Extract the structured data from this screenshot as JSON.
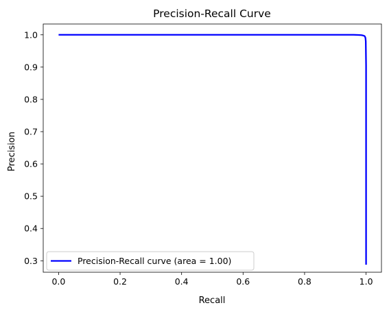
{
  "chart_data": {
    "type": "line",
    "title": "Precision-Recall Curve",
    "xlabel": "Recall",
    "ylabel": "Precision",
    "xlim": [
      -0.05,
      1.05
    ],
    "ylim": [
      0.2645,
      1.0335
    ],
    "xticks": [
      "0.0",
      "0.2",
      "0.4",
      "0.6",
      "0.8",
      "1.0"
    ],
    "xtick_values": [
      0.0,
      0.2,
      0.4,
      0.6,
      0.8,
      1.0
    ],
    "yticks": [
      "0.3",
      "0.4",
      "0.5",
      "0.6",
      "0.7",
      "0.8",
      "0.9",
      "1.0"
    ],
    "ytick_values": [
      0.3,
      0.4,
      0.5,
      0.6,
      0.7,
      0.8,
      0.9,
      1.0
    ],
    "grid": false,
    "legend_position": "lower-left",
    "series": [
      {
        "name": "Precision-Recall curve (area = 1.00)",
        "color": "#0000ff",
        "x": [
          0.0,
          0.2,
          0.4,
          0.6,
          0.8,
          0.96,
          0.975,
          0.985,
          0.99,
          0.993,
          0.995,
          0.996,
          0.997,
          0.998,
          0.999,
          1.0,
          1.0
        ],
        "y": [
          1.0,
          1.0,
          1.0,
          1.0,
          1.0,
          1.0,
          0.9995,
          0.999,
          0.998,
          0.997,
          0.996,
          0.995,
          0.993,
          0.99,
          0.98,
          0.905,
          0.288
        ]
      }
    ]
  }
}
